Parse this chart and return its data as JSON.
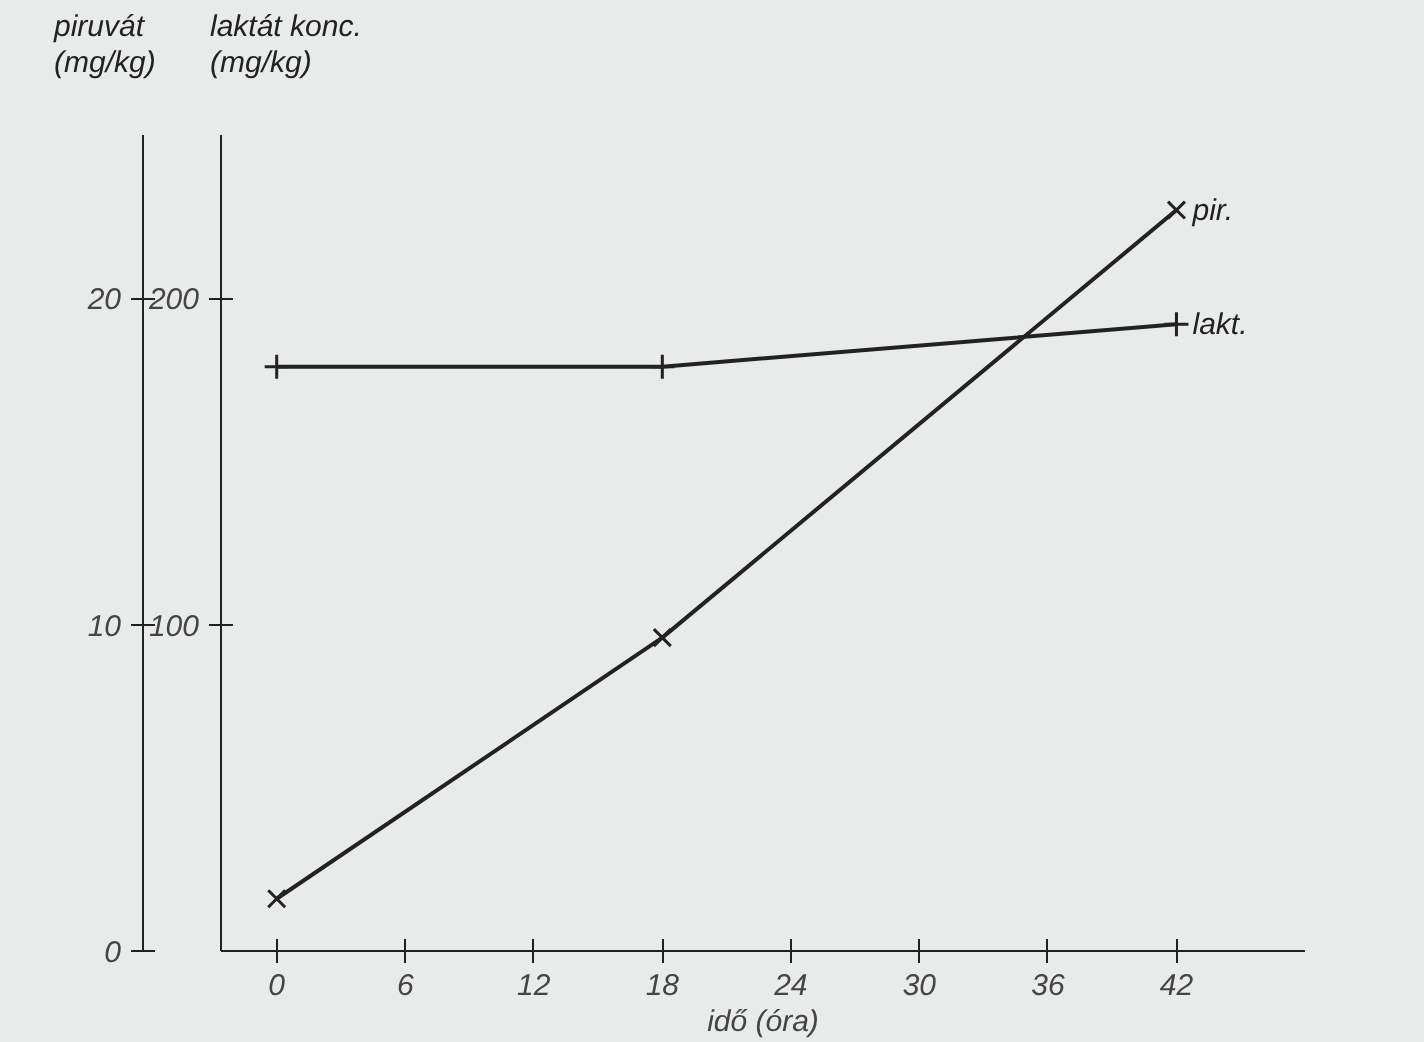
{
  "chart_data": {
    "type": "line",
    "xlabel": "idő (óra)",
    "ylabel": "laktát konc. (mg/kg)",
    "y2label": "piruvát (mg/kg)",
    "x": [
      0,
      18,
      42
    ],
    "xlim": [
      -2.6,
      48
    ],
    "xticks": [
      0,
      6,
      12,
      18,
      24,
      30,
      36,
      42
    ],
    "ylim": [
      0,
      250
    ],
    "yticks": [
      100,
      200
    ],
    "y2lim": [
      0,
      25
    ],
    "y2ticks": [
      0,
      10,
      20
    ],
    "series": [
      {
        "name": "pir.",
        "color": "#222222",
        "values": [
          1.6,
          9.6,
          22.7
        ],
        "axis": "y2",
        "marker": "cross"
      },
      {
        "name": "lakt.",
        "color": "#222222",
        "values": [
          179,
          179,
          192
        ],
        "marker": "plus"
      }
    ],
    "line_style": "solid"
  }
}
